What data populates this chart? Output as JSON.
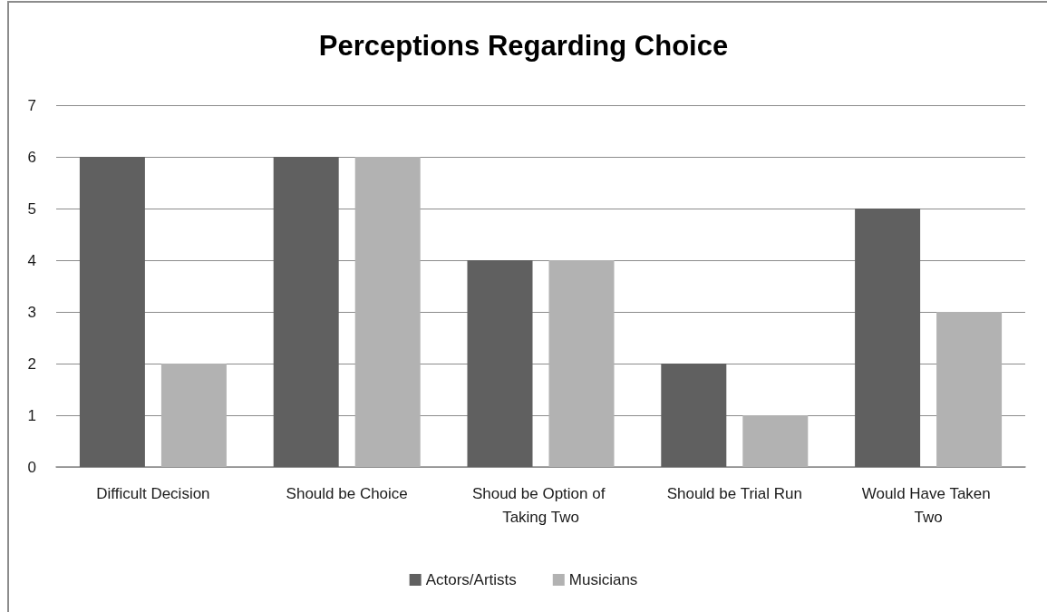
{
  "chart_data": {
    "type": "bar",
    "title": "Perceptions Regarding Choice",
    "categories": [
      "Difficult Decision",
      "Should be Choice",
      "Shoud be Option of Taking Two",
      "Should be Trial Run",
      "Would Have Taken Two"
    ],
    "series": [
      {
        "name": "Actors/Artists",
        "color": "#606060",
        "values": [
          6,
          6,
          4,
          2,
          5
        ]
      },
      {
        "name": "Musicians",
        "color": "#b2b2b2",
        "values": [
          2,
          6,
          4,
          1,
          3
        ]
      }
    ],
    "ylim": [
      0,
      7
    ],
    "yticks": [
      0,
      1,
      2,
      3,
      4,
      5,
      6,
      7
    ],
    "grid": "y",
    "legend": "bottom"
  }
}
